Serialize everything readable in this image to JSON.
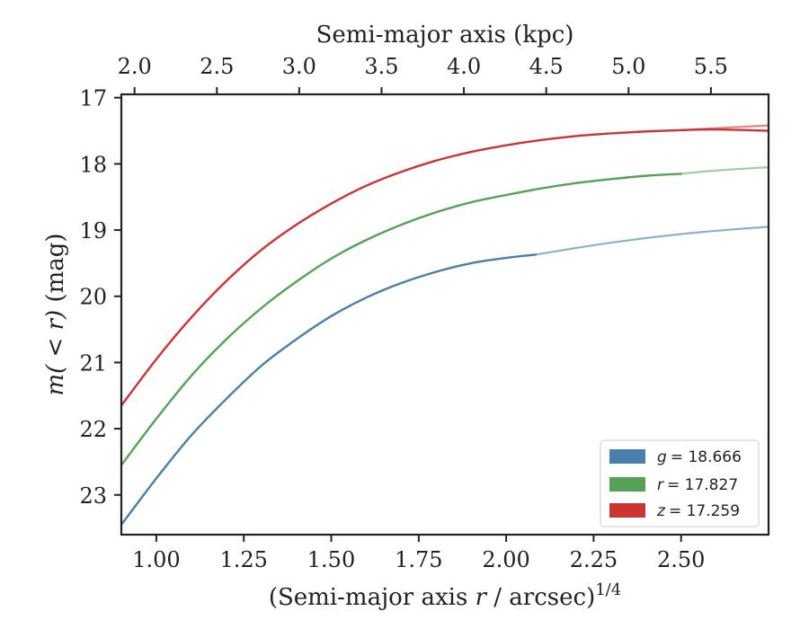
{
  "chart_data": {
    "type": "line",
    "title": "",
    "xlabel_prefix": "(Semi-major axis ",
    "xlabel_var": "r",
    "xlabel_suffix": " / arcsec)",
    "xlabel_sup": "1/4",
    "ylabel_prefix": "m(",
    "ylabel_mid": " < ",
    "ylabel_var": "r",
    "ylabel_close": ")",
    "ylabel_unit": " (mag)",
    "top_xlabel": "Semi-major axis (kpc)",
    "xlim": [
      0.9,
      2.75
    ],
    "ylim": [
      23.6,
      16.95
    ],
    "x_ticks": [
      "1.00",
      "1.25",
      "1.50",
      "1.75",
      "2.00",
      "2.25",
      "2.50"
    ],
    "y_ticks": [
      "17",
      "18",
      "19",
      "20",
      "21",
      "22",
      "23"
    ],
    "top_ticks": [
      "2.0",
      "2.5",
      "3.0",
      "3.5",
      "4.0",
      "4.5",
      "5.0",
      "5.5"
    ],
    "top_axis_range_kpc": [
      1.92,
      5.85
    ],
    "legend_position": "lower right",
    "series": [
      {
        "name": "g = 18.666",
        "var": "g",
        "value": "= 18.666",
        "color": "#4a7eab",
        "fit_color": "#8fb0cb",
        "x": [
          0.9,
          1.0,
          1.1,
          1.2,
          1.3,
          1.4,
          1.5,
          1.6,
          1.7,
          1.8,
          1.9,
          2.0,
          2.085
        ],
        "y": [
          23.45,
          22.75,
          22.1,
          21.55,
          21.05,
          20.65,
          20.3,
          20.02,
          19.8,
          19.63,
          19.5,
          19.42,
          19.37
        ],
        "fit_x": [
          2.085,
          2.2,
          2.3,
          2.4,
          2.5,
          2.6,
          2.75
        ],
        "fit_y": [
          19.37,
          19.27,
          19.19,
          19.12,
          19.06,
          19.01,
          18.95
        ]
      },
      {
        "name": "r = 17.827",
        "var": "r",
        "value": "= 17.827",
        "color": "#55a255",
        "fit_color": "#a3cca3",
        "x": [
          0.9,
          1.0,
          1.1,
          1.2,
          1.3,
          1.4,
          1.5,
          1.6,
          1.7,
          1.8,
          1.9,
          2.0,
          2.1,
          2.2,
          2.3,
          2.4,
          2.5
        ],
        "y": [
          22.55,
          21.85,
          21.2,
          20.65,
          20.18,
          19.78,
          19.43,
          19.15,
          18.92,
          18.73,
          18.58,
          18.47,
          18.37,
          18.29,
          18.23,
          18.18,
          18.15
        ],
        "fit_x": [
          2.5,
          2.6,
          2.75
        ],
        "fit_y": [
          18.15,
          18.1,
          18.05
        ]
      },
      {
        "name": "z = 17.259",
        "var": "z",
        "value": "= 17.259",
        "color": "#cc3333",
        "fit_color": "#e08a8a",
        "x": [
          0.9,
          1.0,
          1.1,
          1.2,
          1.3,
          1.4,
          1.5,
          1.6,
          1.7,
          1.8,
          1.9,
          2.0,
          2.1,
          2.2,
          2.3,
          2.4,
          2.5,
          2.6,
          2.75
        ],
        "y": [
          21.65,
          20.95,
          20.32,
          19.77,
          19.3,
          18.92,
          18.6,
          18.33,
          18.12,
          17.95,
          17.82,
          17.72,
          17.64,
          17.58,
          17.54,
          17.51,
          17.49,
          17.48,
          17.5
        ],
        "fit_x": [
          2.5,
          2.6,
          2.75
        ],
        "fit_y": [
          17.49,
          17.46,
          17.42
        ]
      }
    ]
  }
}
